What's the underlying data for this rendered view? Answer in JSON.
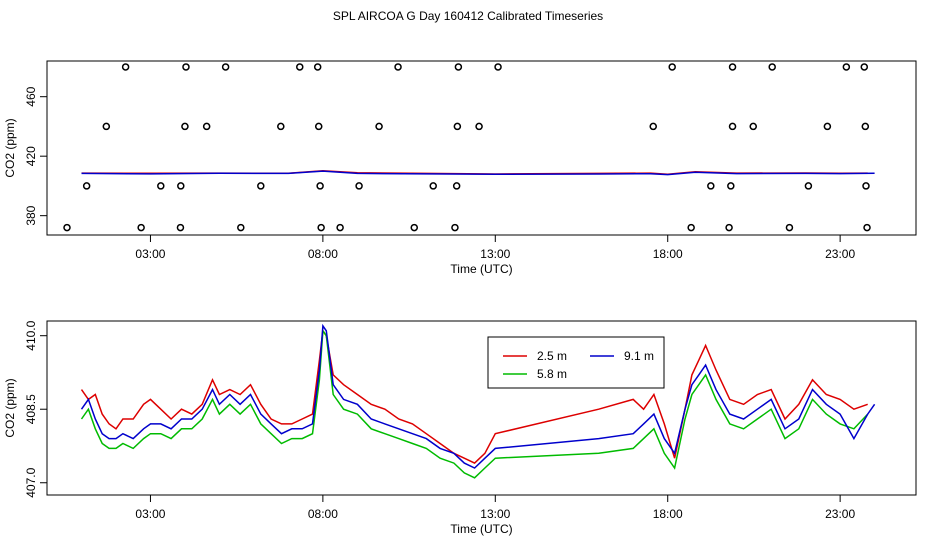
{
  "title": "SPL AIRCOA G  Day 160412  Calibrated Timeseries",
  "chart_data": [
    {
      "type": "line",
      "name": "scatter_with_lines_panel",
      "xlabel": "Time (UTC)",
      "ylabel": "CO2 (ppm)",
      "xlim": [
        0,
        25.2
      ],
      "ylim": [
        367,
        484
      ],
      "x_ticks": [
        3,
        8,
        13,
        18,
        23
      ],
      "x_tick_labels": [
        "03:00",
        "08:00",
        "13:00",
        "18:00",
        "23:00"
      ],
      "y_ticks": [
        380,
        420,
        460
      ],
      "y_tick_labels": [
        "380",
        "420",
        "460"
      ],
      "points": {
        "y": [
          {
            "x": 2.28,
            "v": 480
          },
          {
            "x": 4.03,
            "v": 480
          },
          {
            "x": 5.18,
            "v": 480
          },
          {
            "x": 7.33,
            "v": 480
          },
          {
            "x": 7.85,
            "v": 480
          },
          {
            "x": 10.18,
            "v": 480
          },
          {
            "x": 11.93,
            "v": 480
          },
          {
            "x": 13.08,
            "v": 480
          },
          {
            "x": 18.13,
            "v": 480
          },
          {
            "x": 19.88,
            "v": 480
          },
          {
            "x": 21.03,
            "v": 480
          },
          {
            "x": 23.18,
            "v": 480
          },
          {
            "x": 23.7,
            "v": 480
          },
          {
            "x": 1.72,
            "v": 440
          },
          {
            "x": 4.0,
            "v": 440
          },
          {
            "x": 4.63,
            "v": 440
          },
          {
            "x": 6.78,
            "v": 440
          },
          {
            "x": 7.88,
            "v": 440
          },
          {
            "x": 9.63,
            "v": 440
          },
          {
            "x": 11.9,
            "v": 440
          },
          {
            "x": 12.53,
            "v": 440
          },
          {
            "x": 17.58,
            "v": 440
          },
          {
            "x": 19.88,
            "v": 440
          },
          {
            "x": 20.48,
            "v": 440
          },
          {
            "x": 22.63,
            "v": 440
          },
          {
            "x": 23.73,
            "v": 440
          },
          {
            "x": 1.15,
            "v": 400
          },
          {
            "x": 3.3,
            "v": 400
          },
          {
            "x": 3.88,
            "v": 400
          },
          {
            "x": 6.2,
            "v": 400
          },
          {
            "x": 7.92,
            "v": 400
          },
          {
            "x": 9.05,
            "v": 400
          },
          {
            "x": 11.2,
            "v": 400
          },
          {
            "x": 11.88,
            "v": 400
          },
          {
            "x": 19.25,
            "v": 400
          },
          {
            "x": 19.83,
            "v": 400
          },
          {
            "x": 22.08,
            "v": 400
          },
          {
            "x": 23.75,
            "v": 400
          },
          {
            "x": 0.58,
            "v": 372
          },
          {
            "x": 2.73,
            "v": 372
          },
          {
            "x": 3.87,
            "v": 372
          },
          {
            "x": 5.62,
            "v": 372
          },
          {
            "x": 7.95,
            "v": 372
          },
          {
            "x": 8.5,
            "v": 372
          },
          {
            "x": 10.65,
            "v": 372
          },
          {
            "x": 11.83,
            "v": 372
          },
          {
            "x": 18.68,
            "v": 372
          },
          {
            "x": 19.78,
            "v": 372
          },
          {
            "x": 21.53,
            "v": 372
          },
          {
            "x": 23.78,
            "v": 372
          }
        ]
      },
      "series": [
        {
          "name": "2.5 m",
          "color": "#dd0000",
          "x": [
            1,
            3,
            5,
            7,
            8,
            9,
            11,
            13,
            16,
            17.5,
            18,
            18.8,
            20,
            22,
            23,
            23.8
          ],
          "values": [
            408.6,
            408.5,
            408.6,
            408.5,
            410.2,
            408.8,
            408.4,
            408.0,
            408.4,
            408.6,
            407.9,
            409.5,
            408.6,
            408.7,
            408.5,
            408.6
          ]
        },
        {
          "name": "9.1 m",
          "color": "#0000cc",
          "x": [
            1,
            3,
            5,
            7,
            8,
            9,
            11,
            13,
            16,
            17.5,
            18,
            18.8,
            20,
            22,
            23,
            24
          ],
          "values": [
            408.4,
            408.1,
            408.5,
            408.4,
            410.0,
            408.4,
            408.1,
            407.8,
            408.0,
            408.2,
            407.6,
            409.2,
            408.3,
            408.4,
            408.3,
            408.5
          ]
        }
      ]
    },
    {
      "type": "line",
      "name": "profile_panel",
      "xlabel": "Time (UTC)",
      "ylabel": "CO2 (ppm)",
      "xlim": [
        0,
        25.2
      ],
      "ylim": [
        406.75,
        410.3
      ],
      "x_ticks": [
        3,
        8,
        13,
        18,
        23
      ],
      "x_tick_labels": [
        "03:00",
        "08:00",
        "13:00",
        "18:00",
        "23:00"
      ],
      "y_ticks": [
        407.0,
        408.5,
        410.0
      ],
      "y_tick_labels": [
        "407.0",
        "408.5",
        "410.0"
      ],
      "legend_position": "top-center",
      "series": [
        {
          "name": "2.5 m",
          "color": "#dd0000",
          "x": [
            1,
            1.2,
            1.4,
            1.6,
            1.8,
            2.0,
            2.2,
            2.5,
            2.8,
            3.0,
            3.3,
            3.6,
            3.9,
            4.2,
            4.5,
            4.8,
            5.0,
            5.3,
            5.6,
            5.9,
            6.2,
            6.5,
            6.8,
            7.1,
            7.4,
            7.7,
            7.9,
            8.0,
            8.1,
            8.3,
            8.6,
            9.0,
            9.4,
            9.8,
            10.2,
            10.6,
            11.0,
            11.4,
            11.8,
            12.1,
            12.4,
            12.7,
            13.0,
            16.0,
            17.0,
            17.3,
            17.6,
            17.9,
            18.2,
            18.5,
            18.7,
            18.9,
            19.1,
            19.4,
            19.8,
            20.2,
            20.6,
            21.0,
            21.4,
            21.8,
            22.2,
            22.6,
            23.0,
            23.4,
            23.8
          ],
          "values": [
            408.9,
            408.7,
            408.8,
            408.4,
            408.2,
            408.1,
            408.3,
            408.3,
            408.6,
            408.7,
            408.5,
            408.3,
            408.5,
            408.4,
            408.6,
            409.1,
            408.8,
            408.9,
            408.8,
            409.0,
            408.6,
            408.3,
            408.2,
            408.2,
            408.3,
            408.4,
            409.5,
            410.1,
            410.0,
            409.2,
            409.0,
            408.8,
            408.6,
            408.5,
            408.3,
            408.2,
            408.0,
            407.8,
            407.6,
            407.5,
            407.4,
            407.6,
            408.0,
            408.5,
            408.7,
            408.5,
            408.8,
            408.2,
            407.5,
            408.5,
            409.2,
            409.5,
            409.8,
            409.3,
            408.7,
            408.6,
            408.8,
            408.9,
            408.3,
            408.6,
            409.1,
            408.8,
            408.7,
            408.5,
            408.6
          ]
        },
        {
          "name": "5.8 m",
          "color": "#00bb00",
          "x": [
            1,
            1.2,
            1.4,
            1.6,
            1.8,
            2.0,
            2.2,
            2.5,
            2.8,
            3.0,
            3.3,
            3.6,
            3.9,
            4.2,
            4.5,
            4.8,
            5.0,
            5.3,
            5.6,
            5.9,
            6.2,
            6.5,
            6.8,
            7.1,
            7.4,
            7.7,
            7.9,
            8.0,
            8.1,
            8.3,
            8.6,
            9.0,
            9.4,
            9.8,
            10.2,
            10.6,
            11.0,
            11.4,
            11.8,
            12.1,
            12.4,
            12.7,
            13.0,
            16.0,
            17.0,
            17.3,
            17.6,
            17.9,
            18.2,
            18.5,
            18.7,
            18.9,
            19.1,
            19.4,
            19.8,
            20.2,
            20.6,
            21.0,
            21.4,
            21.8,
            22.2,
            22.6,
            23.0,
            23.4,
            23.8
          ],
          "values": [
            408.3,
            408.5,
            408.1,
            407.8,
            407.7,
            407.7,
            407.8,
            407.7,
            407.9,
            408.0,
            408.0,
            407.9,
            408.1,
            408.1,
            408.3,
            408.7,
            408.4,
            408.6,
            408.4,
            408.6,
            408.2,
            408.0,
            407.8,
            407.9,
            407.9,
            408.0,
            409.1,
            410.1,
            410.0,
            408.8,
            408.5,
            408.4,
            408.1,
            408.0,
            407.9,
            407.8,
            407.7,
            407.5,
            407.4,
            407.2,
            407.1,
            407.3,
            407.5,
            407.6,
            407.7,
            407.9,
            408.1,
            407.6,
            407.3,
            408.3,
            408.8,
            409.0,
            409.2,
            408.7,
            408.2,
            408.1,
            408.3,
            408.5,
            407.9,
            408.1,
            408.7,
            408.4,
            408.2,
            408.1,
            408.4
          ]
        },
        {
          "name": "9.1 m",
          "color": "#0000cc",
          "x": [
            1,
            1.2,
            1.4,
            1.6,
            1.8,
            2.0,
            2.2,
            2.5,
            2.8,
            3.0,
            3.3,
            3.6,
            3.9,
            4.2,
            4.5,
            4.8,
            5.0,
            5.3,
            5.6,
            5.9,
            6.2,
            6.5,
            6.8,
            7.1,
            7.4,
            7.7,
            7.9,
            8.0,
            8.1,
            8.3,
            8.6,
            9.0,
            9.4,
            9.8,
            10.2,
            10.6,
            11.0,
            11.4,
            11.8,
            12.1,
            12.4,
            12.7,
            13.0,
            16.0,
            17.0,
            17.3,
            17.6,
            17.9,
            18.2,
            18.5,
            18.7,
            18.9,
            19.1,
            19.4,
            19.8,
            20.2,
            20.6,
            21.0,
            21.4,
            21.8,
            22.2,
            22.6,
            23.0,
            23.4,
            23.8,
            24.0
          ],
          "values": [
            408.5,
            408.7,
            408.3,
            408.0,
            407.9,
            407.9,
            408.0,
            407.9,
            408.1,
            408.2,
            408.2,
            408.1,
            408.3,
            408.3,
            408.5,
            408.9,
            408.6,
            408.8,
            408.6,
            408.8,
            408.4,
            408.2,
            408.0,
            408.1,
            408.1,
            408.2,
            409.3,
            410.2,
            410.1,
            409.0,
            408.7,
            408.6,
            408.3,
            408.2,
            408.1,
            408.0,
            407.9,
            407.7,
            407.6,
            407.4,
            407.3,
            407.5,
            407.7,
            407.9,
            408.0,
            408.2,
            408.4,
            407.9,
            407.6,
            408.5,
            409.0,
            409.2,
            409.4,
            408.9,
            408.4,
            408.3,
            408.5,
            408.7,
            408.1,
            408.3,
            408.9,
            408.6,
            408.4,
            407.9,
            408.4,
            408.6
          ]
        }
      ]
    }
  ]
}
